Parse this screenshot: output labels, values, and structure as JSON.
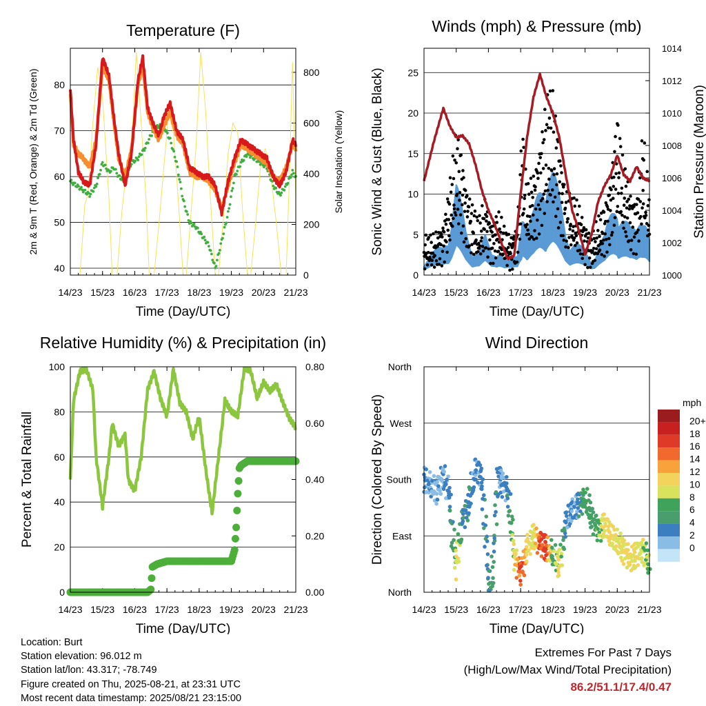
{
  "chart_data": [
    {
      "type": "line",
      "title": "Temperature (F)",
      "xlabel": "Time (Day/UTC)",
      "ylabel": "2m & 9m T (Red, Orange) & 2m Td (Green)",
      "y2label": "Solar Insolation (Yellow)",
      "ylim": [
        38.5,
        88
      ],
      "y2lim": [
        0,
        895
      ],
      "yticks": [
        40,
        50,
        60,
        70,
        80
      ],
      "y2ticks": [
        0,
        200,
        400,
        600,
        800
      ],
      "xticks": [
        "14/23",
        "15/23",
        "16/23",
        "17/23",
        "18/23",
        "19/23",
        "20/23",
        "21/23"
      ],
      "grid": "horizontal",
      "series": [
        {
          "color": "#d7191c",
          "x": [
            0,
            0.1,
            0.25,
            0.4,
            0.6,
            0.8,
            1.0,
            1.2,
            1.35,
            1.5,
            1.7,
            1.9,
            2.1,
            2.25,
            2.4,
            2.6,
            2.75,
            2.9,
            3.1,
            3.3,
            3.5,
            3.7,
            3.9,
            4.1,
            4.3,
            4.5,
            4.7,
            4.9,
            5.1,
            5.3,
            5.5,
            5.7,
            5.9,
            6.1,
            6.3,
            6.5,
            6.7,
            6.9,
            7.0
          ],
          "y": [
            79,
            68,
            61,
            59,
            58,
            67,
            86,
            82,
            73,
            65,
            58,
            65,
            81,
            86,
            75,
            71,
            69,
            73,
            76,
            70,
            68,
            62,
            61,
            60,
            60,
            58,
            52,
            59,
            64,
            68,
            67,
            66,
            65,
            64,
            60,
            58,
            61,
            68,
            67
          ]
        },
        {
          "color": "#f68d2e",
          "x": [
            0,
            0.1,
            0.25,
            0.4,
            0.6,
            0.8,
            1.0,
            1.2,
            1.35,
            1.5,
            1.7,
            1.9,
            2.1,
            2.25,
            2.4,
            2.6,
            2.75,
            2.9,
            3.1,
            3.3,
            3.5,
            3.7,
            3.9,
            4.1,
            4.3,
            4.5,
            4.7,
            4.9,
            5.1,
            5.3,
            5.5,
            5.7,
            5.9,
            6.1,
            6.3,
            6.5,
            6.7,
            6.9,
            7.0
          ],
          "y": [
            78,
            67,
            65,
            64,
            62,
            68,
            84,
            81,
            72,
            64,
            60,
            66,
            80,
            84,
            74,
            70,
            68,
            71,
            74,
            69,
            67,
            61,
            60,
            60,
            59,
            57,
            53,
            58,
            63,
            67,
            66,
            65,
            64,
            63,
            60,
            59,
            62,
            67,
            66
          ]
        },
        {
          "color": "#3fae3f",
          "x": [
            0,
            0.2,
            0.4,
            0.6,
            0.8,
            1.0,
            1.2,
            1.35,
            1.5,
            1.7,
            1.9,
            2.1,
            2.3,
            2.5,
            2.7,
            2.9,
            3.1,
            3.3,
            3.5,
            3.7,
            3.9,
            4.1,
            4.3,
            4.5,
            4.7,
            4.9,
            5.1,
            5.3,
            5.5,
            5.7,
            5.9,
            6.1,
            6.3,
            6.5,
            6.7,
            6.9,
            7.0
          ],
          "y": [
            59,
            58,
            57,
            56,
            58,
            63,
            61,
            62,
            60,
            59,
            63,
            64,
            66,
            69,
            71,
            71,
            68,
            63,
            55,
            50,
            49,
            47,
            45,
            40,
            46,
            52,
            60,
            63,
            65,
            64,
            63,
            62,
            58,
            56,
            58,
            61,
            60
          ]
        },
        {
          "color": "#f7e15b",
          "x": [
            0,
            0.3,
            0.45,
            0.55,
            0.7,
            0.85,
            1.0,
            1.2,
            1.3,
            1.45,
            1.6,
            1.75,
            1.9,
            2.05,
            2.2,
            2.35,
            2.45,
            2.6,
            2.75,
            2.9,
            3.05,
            3.2,
            3.35,
            3.5,
            3.6,
            3.75,
            3.9,
            4.05,
            4.2,
            4.35,
            4.5,
            4.6,
            4.75,
            4.9,
            5.05,
            5.2,
            5.35,
            5.5,
            5.6,
            5.75,
            5.9,
            6.05,
            6.2,
            6.4,
            6.55,
            6.7,
            6.8,
            6.9,
            7.0
          ],
          "y": [
            0,
            0,
            280,
            320,
            600,
            820,
            700,
            300,
            0,
            0,
            250,
            420,
            500,
            880,
            600,
            300,
            0,
            0,
            200,
            420,
            640,
            560,
            300,
            0,
            0,
            250,
            500,
            880,
            650,
            300,
            0,
            0,
            220,
            480,
            600,
            560,
            250,
            0,
            0,
            200,
            420,
            500,
            420,
            200,
            0,
            0,
            380,
            840,
            300
          ]
        }
      ]
    },
    {
      "type": "scatter",
      "title": "Winds (mph) & Pressure (mb)",
      "xlabel": "Time (Day/UTC)",
      "ylabel": "Sonic Wind & Gust (Blue, Black)",
      "y2label": "Station Pressure (Maroon)",
      "ylim": [
        0,
        28
      ],
      "y2lim": [
        1000,
        1014
      ],
      "yticks": [
        0,
        5,
        10,
        15,
        20,
        25
      ],
      "y2ticks": [
        1000,
        1002,
        1004,
        1006,
        1008,
        1010,
        1012,
        1014
      ],
      "xticks": [
        "14/23",
        "15/23",
        "16/23",
        "17/23",
        "18/23",
        "19/23",
        "20/23",
        "21/23"
      ],
      "grid": "horizontal",
      "series": [
        {
          "color": "#000000",
          "x": [
            0,
            0.3,
            0.6,
            0.85,
            1.0,
            1.15,
            1.3,
            1.5,
            1.7,
            1.9,
            2.1,
            2.3,
            2.5,
            2.7,
            2.9,
            3.05,
            3.2,
            3.4,
            3.6,
            3.8,
            4.0,
            4.2,
            4.4,
            4.6,
            4.8,
            5.0,
            5.2,
            5.4,
            5.6,
            5.8,
            6.0,
            6.2,
            6.4,
            6.6,
            6.8,
            7.0
          ],
          "y": [
            4,
            4,
            6,
            12,
            17,
            15,
            11,
            8,
            6,
            9,
            6,
            7,
            5,
            4,
            6,
            18,
            10,
            12,
            16,
            21,
            22,
            16,
            10,
            9,
            8,
            6,
            4,
            6,
            8,
            12,
            19,
            13,
            10,
            9,
            17,
            9
          ]
        },
        {
          "color": "#5b9bd5",
          "x": [
            0,
            0.3,
            0.6,
            0.85,
            1.0,
            1.15,
            1.3,
            1.5,
            1.7,
            1.9,
            2.1,
            2.3,
            2.5,
            2.7,
            2.9,
            3.05,
            3.2,
            3.4,
            3.6,
            3.8,
            4.0,
            4.2,
            4.4,
            4.6,
            4.8,
            5.0,
            5.2,
            5.4,
            5.6,
            5.8,
            6.0,
            6.2,
            6.4,
            6.6,
            6.8,
            7.0
          ],
          "y": [
            2,
            3,
            4,
            8,
            12,
            9,
            6,
            4,
            3,
            5,
            3,
            4,
            2,
            2,
            3,
            11,
            6,
            8,
            12,
            16,
            14,
            10,
            6,
            5,
            4,
            3,
            2,
            4,
            5,
            8,
            11,
            8,
            6,
            6,
            11,
            5
          ]
        },
        {
          "color": "#a51c24",
          "x": [
            0,
            0.3,
            0.6,
            0.8,
            1.0,
            1.2,
            1.4,
            1.6,
            1.8,
            2.0,
            2.2,
            2.4,
            2.6,
            2.8,
            3.0,
            3.2,
            3.4,
            3.6,
            3.8,
            4.0,
            4.2,
            4.4,
            4.6,
            4.8,
            5.0,
            5.2,
            5.4,
            5.6,
            5.8,
            6.0,
            6.2,
            6.4,
            6.6,
            6.8,
            7.0
          ],
          "y2": [
            1005.8,
            1008.2,
            1010.3,
            1009.2,
            1008.5,
            1008.6,
            1008.1,
            1006.8,
            1005.2,
            1004.0,
            1003.1,
            1002.0,
            1001.0,
            1001.2,
            1005.0,
            1008.5,
            1011.0,
            1012.4,
            1011.0,
            1010.0,
            1008.5,
            1006.2,
            1004.0,
            1002.8,
            1001.3,
            1002.5,
            1004.5,
            1005.5,
            1006.2,
            1007.4,
            1006.2,
            1005.8,
            1006.7,
            1006.0,
            1005.8
          ]
        }
      ]
    },
    {
      "type": "line",
      "title": "Relative Humidity (%) & Precipitation (in)",
      "xlabel": "Time (Day/UTC)",
      "ylabel": "Percent & Total Rainfall",
      "ylim": [
        0,
        100
      ],
      "y2lim": [
        0,
        0.8
      ],
      "yticks": [
        0,
        20,
        40,
        60,
        80,
        100
      ],
      "y2ticks": [
        "0.00",
        "0.20",
        "0.40",
        "0.60",
        "0.80"
      ],
      "xticks": [
        "14/23",
        "15/23",
        "16/23",
        "17/23",
        "18/23",
        "19/23",
        "20/23",
        "21/23"
      ],
      "grid": "horizontal",
      "series": [
        {
          "color": "#8cc63f",
          "x": [
            0,
            0.1,
            0.3,
            0.5,
            0.7,
            0.8,
            1.0,
            1.2,
            1.3,
            1.5,
            1.7,
            1.8,
            2.0,
            2.2,
            2.4,
            2.6,
            2.8,
            3.0,
            3.2,
            3.4,
            3.6,
            3.8,
            4.0,
            4.2,
            4.4,
            4.6,
            4.8,
            5.0,
            5.2,
            5.4,
            5.6,
            5.8,
            6.0,
            6.2,
            6.4,
            6.6,
            6.8,
            7.0
          ],
          "y": [
            50,
            85,
            98,
            99,
            90,
            60,
            38,
            60,
            75,
            65,
            70,
            50,
            45,
            60,
            90,
            98,
            86,
            78,
            99,
            84,
            80,
            68,
            78,
            55,
            35,
            60,
            85,
            80,
            78,
            99,
            98,
            86,
            93,
            89,
            92,
            84,
            77,
            73
          ]
        },
        {
          "color": "#4daf3a",
          "x": [
            0,
            0.5,
            1.0,
            1.5,
            2.0,
            2.4,
            2.5,
            2.55,
            2.7,
            3.0,
            3.5,
            4.0,
            4.5,
            5.0,
            5.1,
            5.15,
            5.2,
            5.25,
            5.3,
            5.5,
            6.0,
            6.5,
            7.0
          ],
          "y2": [
            0,
            0,
            0,
            0,
            0,
            0,
            0.01,
            0.09,
            0.1,
            0.11,
            0.11,
            0.11,
            0.11,
            0.11,
            0.15,
            0.23,
            0.35,
            0.44,
            0.45,
            0.465,
            0.465,
            0.465,
            0.465
          ]
        }
      ]
    },
    {
      "type": "scatter",
      "title": "Wind Direction",
      "xlabel": "Time (Day/UTC)",
      "ylabel": "Direction (Colored By Speed)",
      "ylim": [
        0,
        360
      ],
      "yticks": [
        "North",
        "East",
        "South",
        "West",
        "North"
      ],
      "xticks": [
        "14/23",
        "15/23",
        "16/23",
        "17/23",
        "18/23",
        "19/23",
        "20/23",
        "21/23"
      ],
      "grid": "horizontal",
      "legend": {
        "title": "mph",
        "position": "right",
        "labels": [
          "20+",
          "18",
          "16",
          "14",
          "12",
          "10",
          "8",
          "6",
          "4",
          "2",
          "0"
        ],
        "colors": [
          "#9b1c1f",
          "#c8201f",
          "#df3a27",
          "#f16a2d",
          "#f7a23b",
          "#f4d35c",
          "#d8e25c",
          "#3fa35c",
          "#4a9e6e",
          "#3b7fc0",
          "#8abde6",
          "#c4e5f7"
        ]
      },
      "points": [
        {
          "x": [
            0,
            0.2,
            0.4,
            0.6,
            0.8,
            0.9,
            1.0,
            1.2,
            1.4,
            1.5,
            1.6,
            1.8,
            2.0,
            2.1,
            2.3,
            2.5,
            2.6,
            2.8,
            3.0,
            3.2,
            3.4,
            3.6,
            3.8,
            4.0,
            4.2,
            4.4,
            4.6,
            4.8,
            5.0,
            5.2,
            5.4,
            5.6,
            5.8,
            6.0,
            6.2,
            6.4,
            6.6,
            6.8,
            7.0
          ],
          "y": [
            180,
            170,
            160,
            190,
            150,
            80,
            40,
            120,
            140,
            170,
            200,
            180,
            20,
            10,
            190,
            170,
            160,
            60,
            30,
            70,
            90,
            80,
            70,
            60,
            40,
            110,
            130,
            140,
            150,
            120,
            100,
            110,
            90,
            80,
            70,
            50,
            60,
            70,
            40
          ],
          "speed": [
            3,
            3,
            2,
            3,
            4,
            6,
            12,
            4,
            5,
            4,
            3,
            4,
            5,
            6,
            4,
            3,
            4,
            10,
            18,
            12,
            10,
            17,
            18,
            6,
            12,
            4,
            3,
            4,
            8,
            6,
            8,
            11,
            12,
            10,
            11,
            12,
            11,
            10,
            8
          ]
        }
      ]
    }
  ],
  "footer": {
    "location": "Location: Burt",
    "elevation": "Station elevation: 96.012 m",
    "latlon": "Station lat/lon: 43.317; -78.749",
    "created": "Figure created on Thu, 2025-08-21, at 23:31 UTC",
    "recent": "Most recent data timestamp: 2025/08/21 23:15:00"
  },
  "extremes": {
    "title": "Extremes For Past 7 Days",
    "subtitle": "(High/Low/Max Wind/Total Precipitation)",
    "values": "86.2/51.1/17.4/0.47"
  }
}
